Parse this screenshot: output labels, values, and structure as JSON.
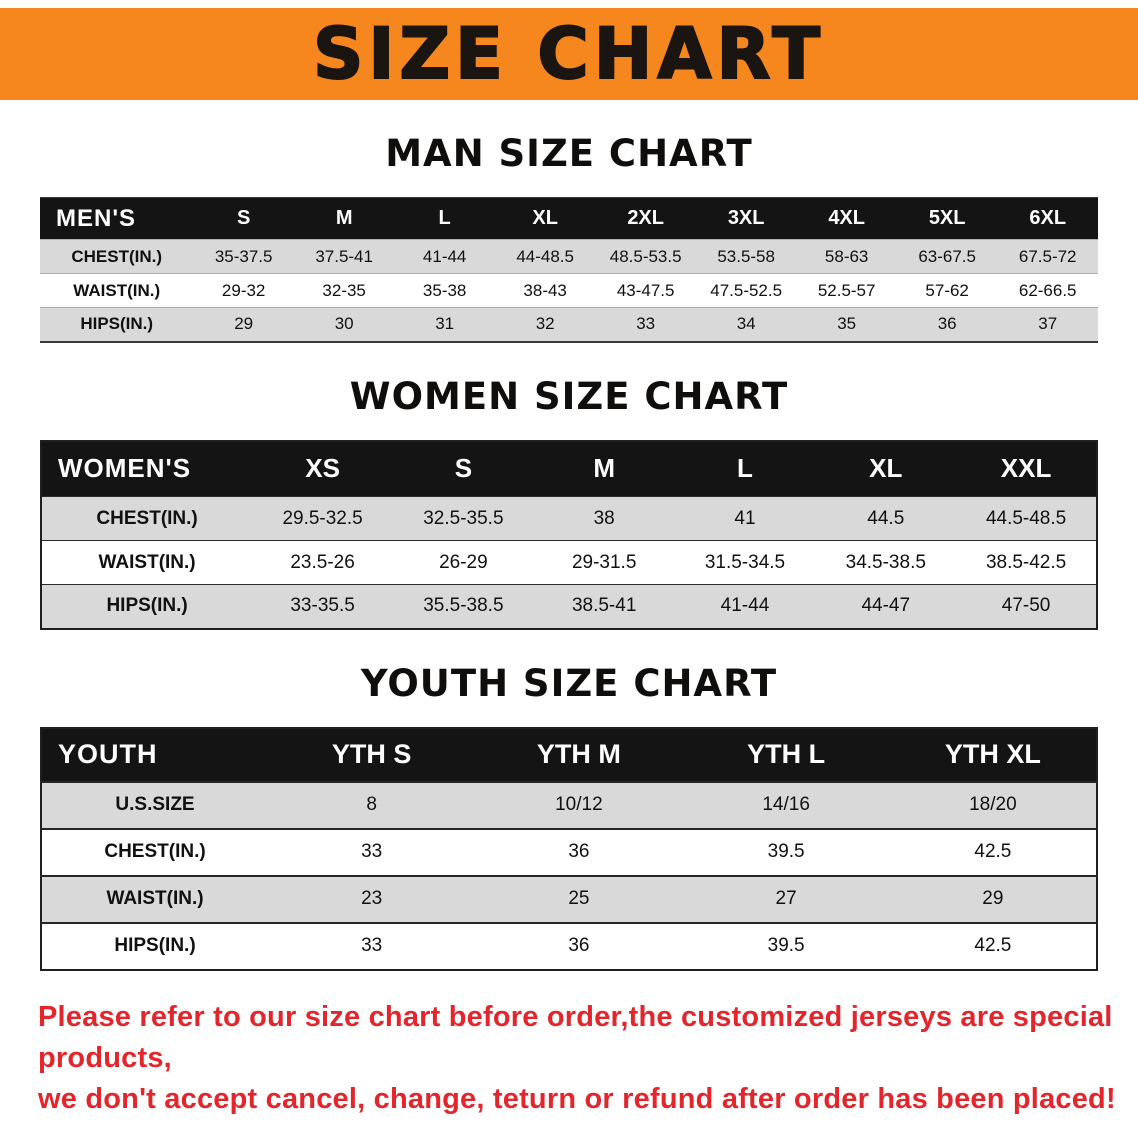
{
  "banner": {
    "title": "SIZE CHART"
  },
  "colors": {
    "banner_orange": "#f6871f",
    "header_black": "#141414",
    "row_gray": "#d9d9d9",
    "disclaimer_red": "#e2262c",
    "text_black": "#111111"
  },
  "sections": [
    {
      "title": "MAN SIZE CHART",
      "header": [
        "MEN'S",
        "S",
        "M",
        "L",
        "XL",
        "2XL",
        "3XL",
        "4XL",
        "5XL",
        "6XL"
      ],
      "rows": [
        [
          "CHEST(IN.)",
          "35-37.5",
          "37.5-41",
          "41-44",
          "44-48.5",
          "48.5-53.5",
          "53.5-58",
          "58-63",
          "63-67.5",
          "67.5-72"
        ],
        [
          "WAIST(IN.)",
          "29-32",
          "32-35",
          "35-38",
          "38-43",
          "43-47.5",
          "47.5-52.5",
          "52.5-57",
          "57-62",
          "62-66.5"
        ],
        [
          "HIPS(IN.)",
          "29",
          "30",
          "31",
          "32",
          "33",
          "34",
          "35",
          "36",
          "37"
        ]
      ]
    },
    {
      "title": "WOMEN SIZE CHART",
      "header": [
        "WOMEN'S",
        "XS",
        "S",
        "M",
        "L",
        "XL",
        "XXL"
      ],
      "rows": [
        [
          "CHEST(IN.)",
          "29.5-32.5",
          "32.5-35.5",
          "38",
          "41",
          "44.5",
          "44.5-48.5"
        ],
        [
          "WAIST(IN.)",
          "23.5-26",
          "26-29",
          "29-31.5",
          "31.5-34.5",
          "34.5-38.5",
          "38.5-42.5"
        ],
        [
          "HIPS(IN.)",
          "33-35.5",
          "35.5-38.5",
          "38.5-41",
          "41-44",
          "44-47",
          "47-50"
        ]
      ]
    },
    {
      "title": "YOUTH SIZE CHART",
      "header": [
        "YOUTH",
        "YTH S",
        "YTH M",
        "YTH L",
        "YTH XL"
      ],
      "rows": [
        [
          "U.S.SIZE",
          "8",
          "10/12",
          "14/16",
          "18/20"
        ],
        [
          "CHEST(IN.)",
          "33",
          "36",
          "39.5",
          "42.5"
        ],
        [
          "WAIST(IN.)",
          "23",
          "25",
          "27",
          "29"
        ],
        [
          "HIPS(IN.)",
          "33",
          "36",
          "39.5",
          "42.5"
        ]
      ]
    }
  ],
  "disclaimer": [
    "Please refer to our size chart before order,the customized jerseys are special products,",
    "we don't accept cancel, change, teturn or refund after order has been placed!"
  ]
}
